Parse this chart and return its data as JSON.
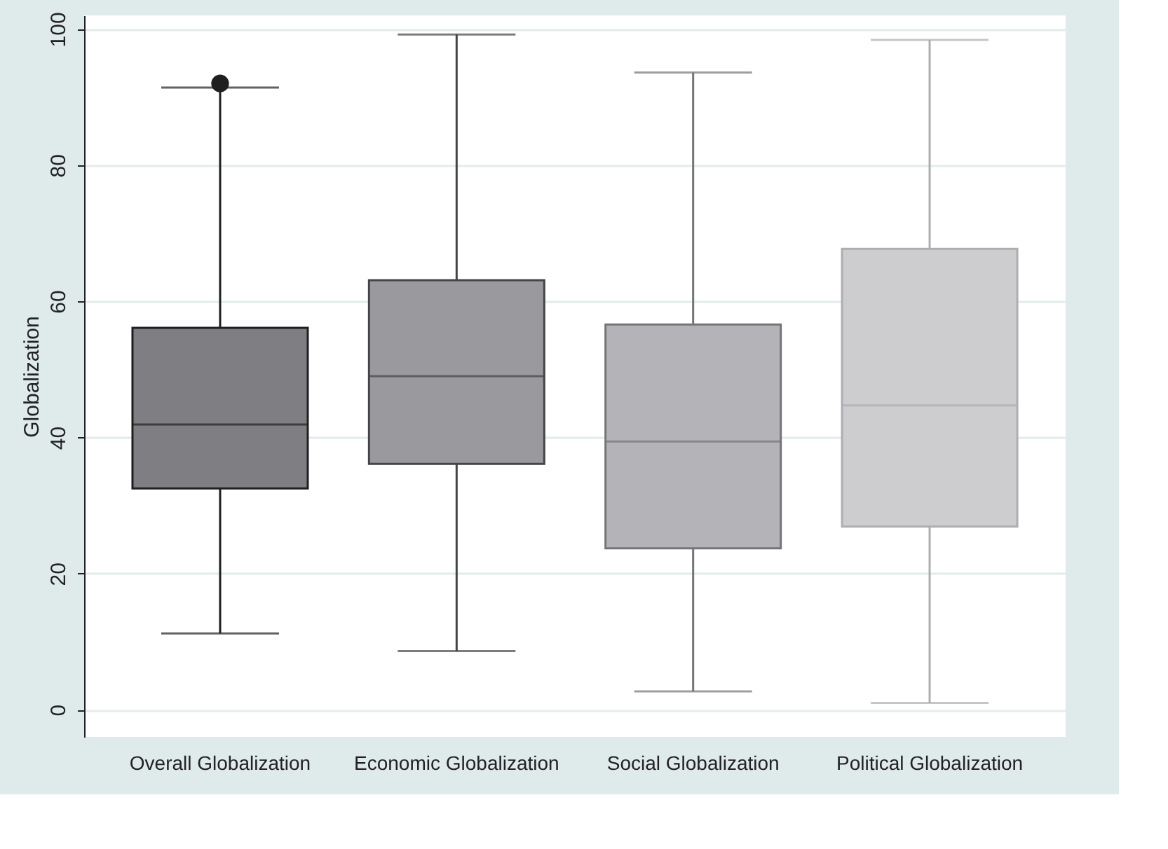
{
  "chart_data": {
    "type": "box",
    "ylabel": "Globalization",
    "categories": [
      "Overall Globalization",
      "Economic Globalization",
      "Social Globalization",
      "Political Globalization"
    ],
    "boxes": [
      {
        "low": 11.2,
        "q1": 32.5,
        "median": 41.9,
        "q3": 56.1,
        "high": 91.4,
        "outliers": [
          92.0
        ]
      },
      {
        "low": 8.6,
        "q1": 36.1,
        "median": 49.0,
        "q3": 63.1,
        "high": 99.2
      },
      {
        "low": 2.7,
        "q1": 23.7,
        "median": 39.4,
        "q3": 56.6,
        "high": 93.6
      },
      {
        "low": 1.0,
        "q1": 26.9,
        "median": 44.7,
        "q3": 67.7,
        "high": 98.4
      }
    ],
    "colors": [
      "#7f7f83",
      "#9a9a9e",
      "#b4b4b8",
      "#cdcdd0"
    ],
    "ylim": [
      -4,
      102
    ],
    "yticks": [
      0,
      20,
      40,
      60,
      80,
      100
    ],
    "grid": "y"
  }
}
